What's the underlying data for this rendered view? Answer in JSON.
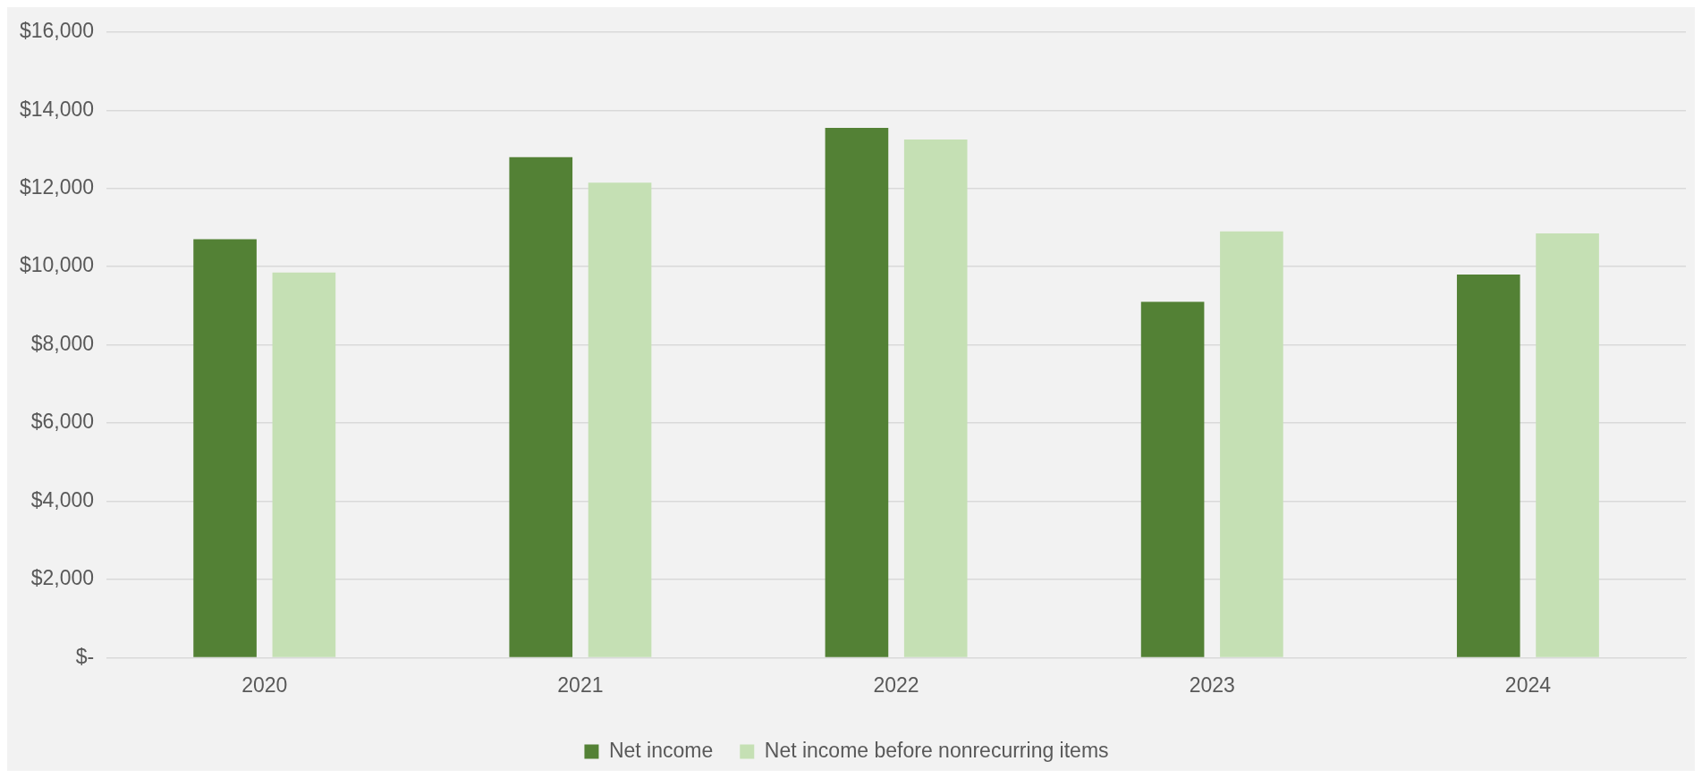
{
  "chart_data": {
    "type": "bar",
    "categories": [
      "2020",
      "2021",
      "2022",
      "2023",
      "2024"
    ],
    "series": [
      {
        "name": "Net income",
        "color": "#538135",
        "values": [
          10700,
          12800,
          13550,
          9100,
          9800
        ]
      },
      {
        "name": "Net income before nonrecurring items",
        "color": "#c5e0b4",
        "values": [
          9850,
          12150,
          13250,
          10900,
          10850
        ]
      }
    ],
    "ylim": [
      0,
      16000
    ],
    "yticks": [
      {
        "value": 0,
        "label": "$-"
      },
      {
        "value": 2000,
        "label": "$2,000"
      },
      {
        "value": 4000,
        "label": "$4,000"
      },
      {
        "value": 6000,
        "label": "$6,000"
      },
      {
        "value": 8000,
        "label": "$8,000"
      },
      {
        "value": 10000,
        "label": "$10,000"
      },
      {
        "value": 12000,
        "label": "$12,000"
      },
      {
        "value": 14000,
        "label": "$14,000"
      },
      {
        "value": 16000,
        "label": "$16,000"
      }
    ],
    "grid": "y",
    "legend": "bottom"
  }
}
